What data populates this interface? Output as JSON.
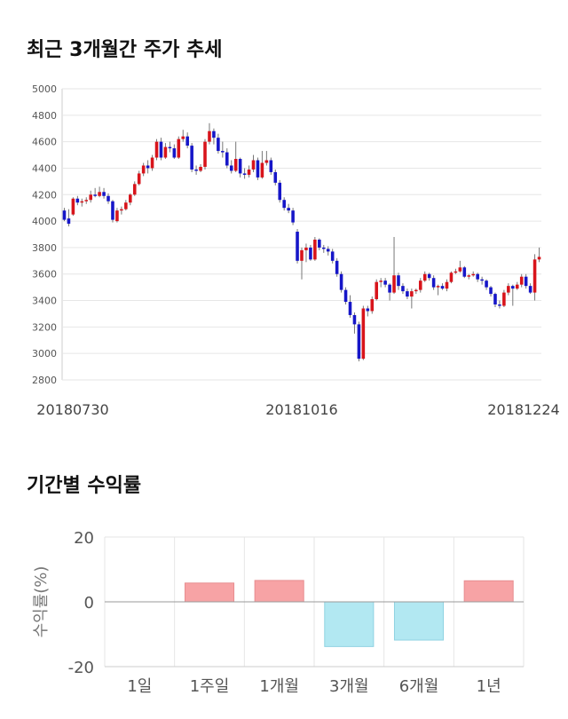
{
  "titles": {
    "candle": "최근 3개월간 주가 추세",
    "returns": "기간별 수익률"
  },
  "chart_data": [
    {
      "type": "candlestick",
      "ylim": [
        2800,
        5000
      ],
      "yticks": [
        2800,
        3000,
        3200,
        3400,
        3600,
        3800,
        4000,
        4200,
        4400,
        4600,
        4800,
        5000
      ],
      "date_labels": [
        "20180730",
        "20181016",
        "20181224"
      ],
      "colors": {
        "up": "#d8141b",
        "down": "#1616c8",
        "grid": "#e6e6e6"
      },
      "candles": [
        [
          4080,
          4010,
          4100,
          4000
        ],
        [
          4020,
          3980,
          4090,
          3960
        ],
        [
          4050,
          4170,
          4180,
          4040
        ],
        [
          4170,
          4140,
          4190,
          4120
        ],
        [
          4140,
          4150,
          4170,
          4110
        ],
        [
          4150,
          4160,
          4180,
          4130
        ],
        [
          4160,
          4200,
          4230,
          4140
        ],
        [
          4200,
          4190,
          4250,
          4180
        ],
        [
          4190,
          4220,
          4260,
          4180
        ],
        [
          4220,
          4190,
          4250,
          4170
        ],
        [
          4190,
          4150,
          4210,
          4130
        ],
        [
          4150,
          4010,
          4160,
          3990
        ],
        [
          4000,
          4080,
          4100,
          3990
        ],
        [
          4080,
          4090,
          4110,
          4050
        ],
        [
          4090,
          4140,
          4160,
          4080
        ],
        [
          4140,
          4200,
          4210,
          4120
        ],
        [
          4200,
          4280,
          4300,
          4190
        ],
        [
          4280,
          4360,
          4380,
          4270
        ],
        [
          4360,
          4420,
          4440,
          4340
        ],
        [
          4420,
          4400,
          4460,
          4360
        ],
        [
          4400,
          4480,
          4500,
          4380
        ],
        [
          4480,
          4600,
          4620,
          4460
        ],
        [
          4600,
          4480,
          4630,
          4460
        ],
        [
          4480,
          4560,
          4590,
          4470
        ],
        [
          4560,
          4550,
          4600,
          4520
        ],
        [
          4550,
          4480,
          4580,
          4470
        ],
        [
          4480,
          4620,
          4640,
          4470
        ],
        [
          4620,
          4640,
          4690,
          4600
        ],
        [
          4640,
          4570,
          4670,
          4550
        ],
        [
          4570,
          4390,
          4590,
          4370
        ],
        [
          4390,
          4380,
          4420,
          4350
        ],
        [
          4380,
          4410,
          4430,
          4370
        ],
        [
          4410,
          4600,
          4620,
          4390
        ],
        [
          4600,
          4680,
          4740,
          4580
        ],
        [
          4680,
          4630,
          4700,
          4580
        ],
        [
          4630,
          4530,
          4660,
          4510
        ],
        [
          4530,
          4520,
          4600,
          4480
        ],
        [
          4520,
          4420,
          4550,
          4400
        ],
        [
          4420,
          4380,
          4460,
          4360
        ],
        [
          4380,
          4470,
          4600,
          4370
        ],
        [
          4470,
          4360,
          4480,
          4330
        ],
        [
          4360,
          4350,
          4400,
          4320
        ],
        [
          4350,
          4390,
          4420,
          4330
        ],
        [
          4390,
          4460,
          4500,
          4370
        ],
        [
          4460,
          4330,
          4480,
          4310
        ],
        [
          4330,
          4440,
          4530,
          4320
        ],
        [
          4440,
          4460,
          4530,
          4420
        ],
        [
          4460,
          4370,
          4480,
          4350
        ],
        [
          4370,
          4290,
          4390,
          4270
        ],
        [
          4290,
          4160,
          4310,
          4140
        ],
        [
          4160,
          4100,
          4180,
          4080
        ],
        [
          4100,
          4080,
          4130,
          4060
        ],
        [
          4080,
          3990,
          4100,
          3970
        ],
        [
          3920,
          3700,
          3940,
          3680
        ],
        [
          3700,
          3780,
          3800,
          3560
        ],
        [
          3780,
          3800,
          3830,
          3690
        ],
        [
          3800,
          3710,
          3820,
          3700
        ],
        [
          3710,
          3860,
          3880,
          3700
        ],
        [
          3860,
          3800,
          3870,
          3780
        ],
        [
          3800,
          3790,
          3820,
          3760
        ],
        [
          3790,
          3770,
          3810,
          3740
        ],
        [
          3770,
          3700,
          3790,
          3680
        ],
        [
          3700,
          3600,
          3720,
          3580
        ],
        [
          3600,
          3480,
          3620,
          3460
        ],
        [
          3480,
          3390,
          3500,
          3370
        ],
        [
          3390,
          3290,
          3440,
          3270
        ],
        [
          3290,
          3220,
          3310,
          3150
        ],
        [
          3220,
          2960,
          3240,
          2940
        ],
        [
          2960,
          3340,
          3360,
          2950
        ],
        [
          3340,
          3320,
          3360,
          3280
        ],
        [
          3320,
          3410,
          3430,
          3300
        ],
        [
          3410,
          3540,
          3560,
          3400
        ],
        [
          3540,
          3550,
          3570,
          3500
        ],
        [
          3550,
          3520,
          3570,
          3500
        ],
        [
          3520,
          3460,
          3530,
          3400
        ],
        [
          3460,
          3590,
          3880,
          3450
        ],
        [
          3590,
          3510,
          3610,
          3480
        ],
        [
          3510,
          3470,
          3530,
          3450
        ],
        [
          3470,
          3430,
          3490,
          3410
        ],
        [
          3430,
          3470,
          3490,
          3340
        ],
        [
          3470,
          3480,
          3490,
          3450
        ],
        [
          3480,
          3550,
          3570,
          3460
        ],
        [
          3550,
          3600,
          3620,
          3540
        ],
        [
          3600,
          3570,
          3610,
          3550
        ],
        [
          3570,
          3500,
          3590,
          3480
        ],
        [
          3500,
          3510,
          3520,
          3440
        ],
        [
          3510,
          3490,
          3530,
          3480
        ],
        [
          3490,
          3540,
          3560,
          3470
        ],
        [
          3540,
          3610,
          3620,
          3530
        ],
        [
          3610,
          3620,
          3640,
          3600
        ],
        [
          3620,
          3650,
          3700,
          3610
        ],
        [
          3650,
          3580,
          3660,
          3570
        ],
        [
          3580,
          3590,
          3600,
          3560
        ],
        [
          3590,
          3600,
          3620,
          3580
        ],
        [
          3600,
          3560,
          3610,
          3540
        ],
        [
          3560,
          3550,
          3580,
          3520
        ],
        [
          3550,
          3500,
          3560,
          3480
        ],
        [
          3500,
          3450,
          3510,
          3430
        ],
        [
          3450,
          3370,
          3460,
          3350
        ],
        [
          3370,
          3360,
          3400,
          3340
        ],
        [
          3360,
          3460,
          3480,
          3350
        ],
        [
          3460,
          3510,
          3530,
          3440
        ],
        [
          3510,
          3490,
          3520,
          3360
        ],
        [
          3490,
          3520,
          3540,
          3480
        ],
        [
          3520,
          3580,
          3600,
          3500
        ],
        [
          3580,
          3510,
          3600,
          3490
        ],
        [
          3510,
          3460,
          3530,
          3450
        ],
        [
          3460,
          3710,
          3750,
          3400
        ],
        [
          3710,
          3730,
          3800,
          3690
        ]
      ]
    },
    {
      "type": "bar",
      "categories": [
        "1일",
        "1주일",
        "1개월",
        "3개월",
        "6개월",
        "1년"
      ],
      "values": [
        0,
        5.8,
        6.6,
        -13.8,
        -11.8,
        6.5
      ],
      "ylabel": "수익률(%)",
      "ylim": [
        -20,
        20
      ],
      "yticks": [
        20,
        0,
        -20
      ],
      "colors": {
        "positive": "#f7a3a5",
        "positive_stroke": "#e78d90",
        "negative": "#b2e8f2",
        "negative_stroke": "#8fd2e2"
      }
    }
  ]
}
